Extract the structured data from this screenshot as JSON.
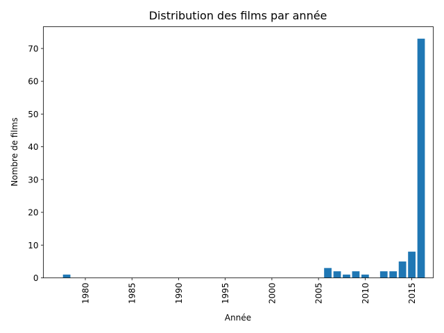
{
  "chart_data": {
    "type": "bar",
    "title": "Distribution des films par année",
    "xlabel": "Année",
    "ylabel": "Nombre de films",
    "x": [
      1978,
      2006,
      2007,
      2008,
      2009,
      2010,
      2012,
      2013,
      2014,
      2015,
      2016
    ],
    "values": [
      1,
      3,
      2,
      1,
      2,
      1,
      2,
      2,
      5,
      8,
      73
    ],
    "xlim": [
      1975.5,
      2017.3
    ],
    "ylim": [
      0,
      76.65
    ],
    "xticks": [
      1980,
      1985,
      1990,
      1995,
      2000,
      2005,
      2010,
      2015
    ],
    "yticks": [
      0,
      10,
      20,
      30,
      40,
      50,
      60,
      70
    ],
    "xtick_rotation": "vertical",
    "grid": false,
    "bar_color": "#1f77b4"
  }
}
